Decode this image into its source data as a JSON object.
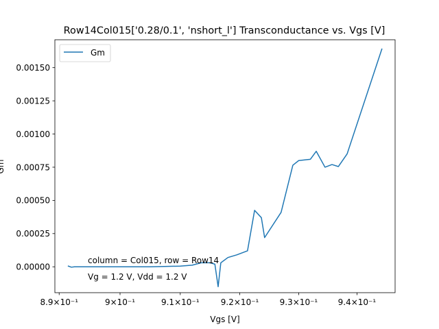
{
  "chart_data": {
    "type": "line",
    "title": "Row14Col015['0.28/0.1', 'nshort_l'] Transconductance vs. Vgs [V]",
    "xlabel": "Vgs [V]",
    "ylabel": "Gm",
    "xscale": "log",
    "xlim": [
      0.8893,
      0.9466
    ],
    "ylim": [
      -0.000195,
      0.00171
    ],
    "xticks": [
      0.89,
      0.9,
      0.91,
      0.92,
      0.93,
      0.94
    ],
    "xtick_labels": [
      "8.9×10⁻¹",
      "9×10⁻¹",
      "9.1×10⁻¹",
      "9.2×10⁻¹",
      "9.3×10⁻¹",
      "9.4×10⁻¹"
    ],
    "yticks": [
      0.0,
      0.00025,
      0.0005,
      0.00075,
      0.001,
      0.00125,
      0.0015
    ],
    "ytick_labels": [
      "0.00000",
      "0.00025",
      "0.00050",
      "0.00075",
      "0.00100",
      "0.00125",
      "0.00150"
    ],
    "grid": false,
    "legend": {
      "placement": "upper-left",
      "entries": [
        "Gm"
      ]
    },
    "series": [
      {
        "name": "Gm",
        "color": "#1f77b4",
        "x": [
          0.8915,
          0.892,
          0.8925,
          0.896,
          0.9,
          0.905,
          0.91,
          0.912,
          0.9135,
          0.915,
          0.9158,
          0.91635,
          0.9168,
          0.918,
          0.9195,
          0.9213,
          0.9225,
          0.92365,
          0.9242,
          0.927,
          0.929,
          0.93,
          0.932,
          0.933,
          0.9345,
          0.9357,
          0.9368,
          0.9383,
          0.9443
        ],
        "y": [
          5e-06,
          -3e-06,
          0.0,
          0.0,
          0.0,
          0.0,
          5e-06,
          1.2e-05,
          3e-05,
          3e-05,
          2e-05,
          -0.00015,
          3e-05,
          7e-05,
          9e-05,
          0.00012,
          0.000425,
          0.00037,
          0.00022,
          0.00041,
          0.000765,
          0.0008,
          0.00081,
          0.00087,
          0.00075,
          0.00077,
          0.000755,
          0.00085,
          0.00164
        ]
      }
    ],
    "annotations": [
      "column = Col015, row = Row14",
      "Vg = 1.2 V, Vdd = 1.2 V"
    ]
  }
}
